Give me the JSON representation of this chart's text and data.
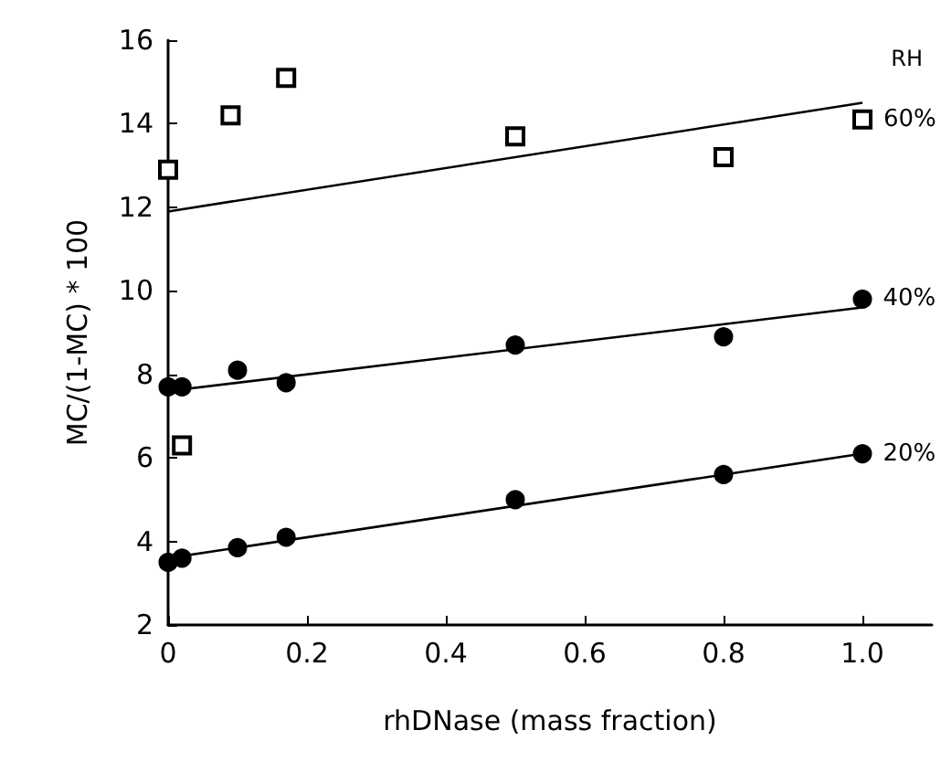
{
  "chart_data": {
    "type": "scatter",
    "xlabel": "rhDNase (mass fraction)",
    "ylabel": "MC/(1-MC) * 100",
    "legend_title": "RH",
    "legend": false,
    "grid": false,
    "xlim": [
      0,
      1.1
    ],
    "xticks": [
      0,
      0.2,
      0.4,
      0.6,
      0.8,
      {
        "value": 1,
        "label": "1.0"
      }
    ],
    "ylim": [
      2,
      16
    ],
    "yticks": [
      2,
      4,
      6,
      8,
      10,
      12,
      14,
      16
    ],
    "series": [
      {
        "name": "60%",
        "color": "#000000",
        "marker": "square",
        "x": [
          0,
          0.02,
          0.09,
          0.17,
          0.5,
          0.8,
          1.0
        ],
        "values": [
          12.9,
          6.3,
          14.2,
          15.1,
          13.7,
          13.2,
          14.1
        ]
      },
      {
        "name": "40%",
        "color": "#000000",
        "marker": "circle",
        "x": [
          0,
          0.02,
          0.1,
          0.17,
          0.5,
          0.8,
          1.0
        ],
        "values": [
          7.7,
          7.7,
          8.1,
          7.8,
          8.7,
          8.9,
          9.8
        ]
      },
      {
        "name": "20%",
        "color": "#000000",
        "marker": "circle",
        "x": [
          0,
          0.02,
          0.1,
          0.17,
          0.5,
          0.8,
          1.0
        ],
        "values": [
          3.5,
          3.6,
          3.85,
          4.1,
          5.0,
          5.6,
          6.1
        ]
      },
      {
        "type": "line",
        "color": "#000000",
        "marker": "none",
        "x": [
          0,
          1.0
        ],
        "values": [
          11.9,
          14.5
        ]
      },
      {
        "type": "line",
        "color": "#000000",
        "marker": "none",
        "x": [
          0,
          1.0
        ],
        "values": [
          7.6,
          9.6
        ]
      },
      {
        "type": "line",
        "color": "#000000",
        "marker": "none",
        "x": [
          0,
          1.0
        ],
        "values": [
          3.6,
          6.1
        ]
      }
    ]
  }
}
